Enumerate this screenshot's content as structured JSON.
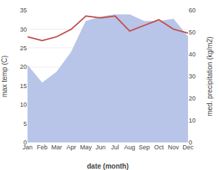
{
  "chart_data": {
    "type": "line",
    "xlabel": "date (month)",
    "ylabel": "max temp (C)",
    "y2label": "med. precipitation (kg/m2)",
    "categories": [
      "Jan",
      "Feb",
      "Mar",
      "Apr",
      "May",
      "Jun",
      "Jul",
      "Aug",
      "Sep",
      "Oct",
      "Nov",
      "Dec"
    ],
    "series": [
      {
        "type": "area",
        "axis": "y2",
        "color": "#b8c4e8",
        "values": [
          35,
          27,
          32,
          41,
          55,
          57,
          58,
          58,
          55,
          55,
          56,
          48
        ]
      },
      {
        "type": "line",
        "color": "#c0504d",
        "values": [
          28,
          27,
          28,
          30,
          33.5,
          33,
          33.5,
          29.5,
          31,
          32.5,
          30,
          29
        ]
      }
    ],
    "ylim": [
      0,
      35
    ],
    "yticks": [
      0,
      5,
      10,
      15,
      20,
      25,
      30,
      35
    ],
    "y2lim": [
      0,
      60
    ],
    "y2ticks": [
      0,
      10,
      20,
      30,
      40,
      50,
      60
    ],
    "grid": true
  }
}
